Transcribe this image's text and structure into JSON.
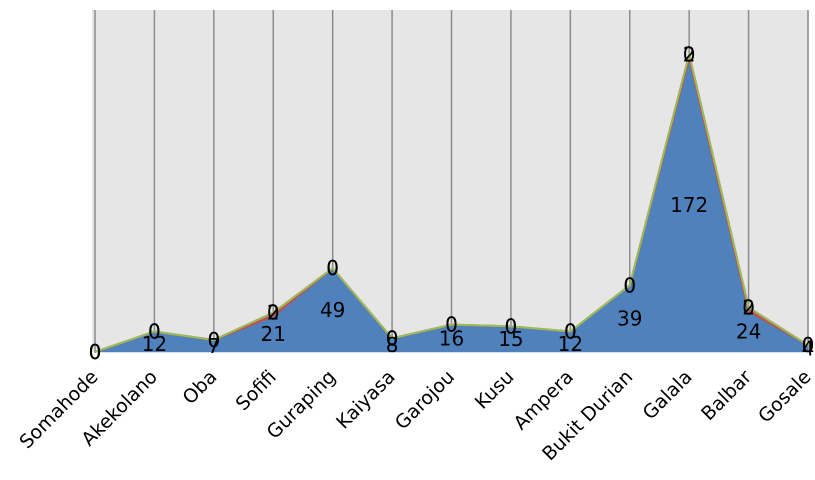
{
  "chart_data": {
    "type": "area",
    "categories": [
      "Somahode",
      "Akekolano",
      "Oba",
      "Sofifi",
      "Guraping",
      "Kaiyasa",
      "Garojou",
      "Kusu",
      "Ampera",
      "Bukit Durian",
      "Galala",
      "Balbar",
      "Gosale"
    ],
    "series": [
      {
        "values": [
          0,
          12,
          7,
          21,
          49,
          8,
          16,
          15,
          12,
          39,
          172,
          24,
          4
        ],
        "color": "#4f81bd"
      },
      {
        "values": [
          0,
          0,
          0,
          2,
          0,
          0,
          0,
          0,
          0,
          0,
          2,
          2,
          0
        ],
        "color": "#c0504d"
      },
      {
        "values": [
          0,
          0,
          0,
          0,
          0,
          0,
          0,
          0,
          0,
          0,
          0,
          0,
          0
        ],
        "color": "#9bbb59"
      }
    ],
    "ylim": [
      0,
      200
    ],
    "grid": "vertical",
    "plot_background": "#e6e6e6",
    "gridline_color": "#8c8c8c"
  }
}
